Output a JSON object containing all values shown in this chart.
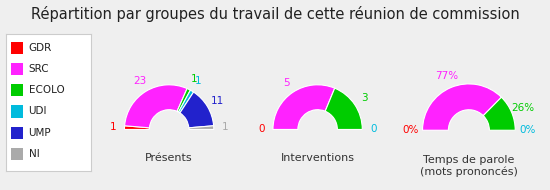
{
  "title": "Répartition par groupes du travail de cette réunion de commission",
  "legend_labels": [
    "GDR",
    "SRC",
    "ECOLO",
    "UDI",
    "UMP",
    "NI"
  ],
  "legend_colors": [
    "#ff0000",
    "#ff22ff",
    "#00cc00",
    "#00bbdd",
    "#2222cc",
    "#aaaaaa"
  ],
  "charts": [
    {
      "title": "Présents",
      "values": [
        1,
        23,
        1,
        1,
        11,
        1
      ],
      "labels": [
        "1",
        "23",
        "1",
        "1",
        "11",
        "1"
      ],
      "label_show": [
        true,
        true,
        true,
        true,
        true,
        true
      ],
      "colors": [
        "#ff0000",
        "#ff22ff",
        "#00cc00",
        "#00bbdd",
        "#2222cc",
        "#aaaaaa"
      ]
    },
    {
      "title": "Interventions",
      "values": [
        0,
        5,
        3,
        0,
        0,
        0
      ],
      "labels": [
        "0",
        "5",
        "3",
        "0",
        "0",
        "0"
      ],
      "label_show": [
        true,
        true,
        true,
        true,
        false,
        false
      ],
      "colors": [
        "#ff0000",
        "#ff22ff",
        "#00cc00",
        "#00bbdd",
        "#2222cc",
        "#aaaaaa"
      ]
    },
    {
      "title": "Temps de parole\n(mots prononcés)",
      "values": [
        0,
        77,
        26,
        0,
        0,
        0
      ],
      "labels": [
        "0%",
        "77%",
        "26%",
        "0%",
        "0%",
        "0%"
      ],
      "label_show": [
        true,
        true,
        true,
        true,
        false,
        false
      ],
      "colors": [
        "#ff0000",
        "#ff22ff",
        "#00cc00",
        "#00bbdd",
        "#2222cc",
        "#aaaaaa"
      ]
    }
  ],
  "background_color": "#efefef",
  "title_fontsize": 10.5,
  "label_fontsize": 7.5,
  "legend_fontsize": 7.5
}
